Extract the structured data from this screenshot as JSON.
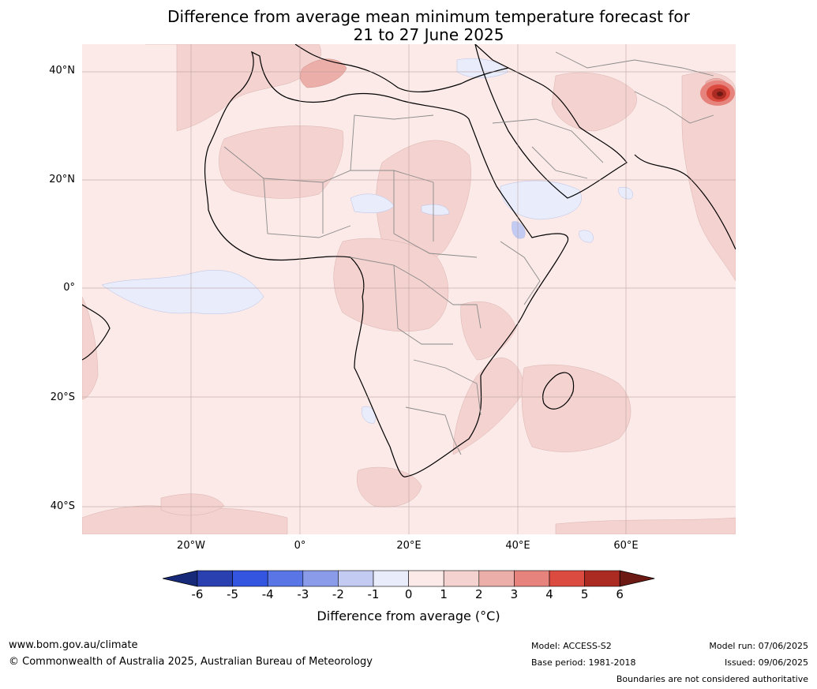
{
  "title": {
    "line1": "Difference from average mean minimum temperature forecast for",
    "line2": "21 to 27 June 2025"
  },
  "map": {
    "latitude_labels": [
      "40°N",
      "20°N",
      "0°",
      "20°S",
      "40°S"
    ],
    "longitude_labels": [
      "20°W",
      "0°",
      "20°E",
      "40°E",
      "60°E"
    ]
  },
  "colorbar": {
    "ticks": [
      "-6",
      "-5",
      "-4",
      "-3",
      "-2",
      "-1",
      "0",
      "1",
      "2",
      "3",
      "4",
      "5",
      "6"
    ],
    "colors": [
      "#172a7a",
      "#2a3fb0",
      "#3355e0",
      "#5a76e6",
      "#8a9ce9",
      "#c3cbf3",
      "#e8ecfb",
      "#fbeae8",
      "#f4d2cf",
      "#ecaea8",
      "#e5837c",
      "#db4b3f",
      "#ab2b22",
      "#6e1a14"
    ],
    "label": "Difference from average (°C)"
  },
  "footer": {
    "website": "www.bom.gov.au/climate",
    "copyright": "© Commonwealth of Australia 2025, Australian Bureau of Meteorology",
    "model": "Model: ACCESS-S2",
    "base_period": "Base period: 1981-2018",
    "model_run": "Model run: 07/06/2025",
    "issued": "Issued: 09/06/2025",
    "disclaimer": "Boundaries are not considered authoritative"
  }
}
